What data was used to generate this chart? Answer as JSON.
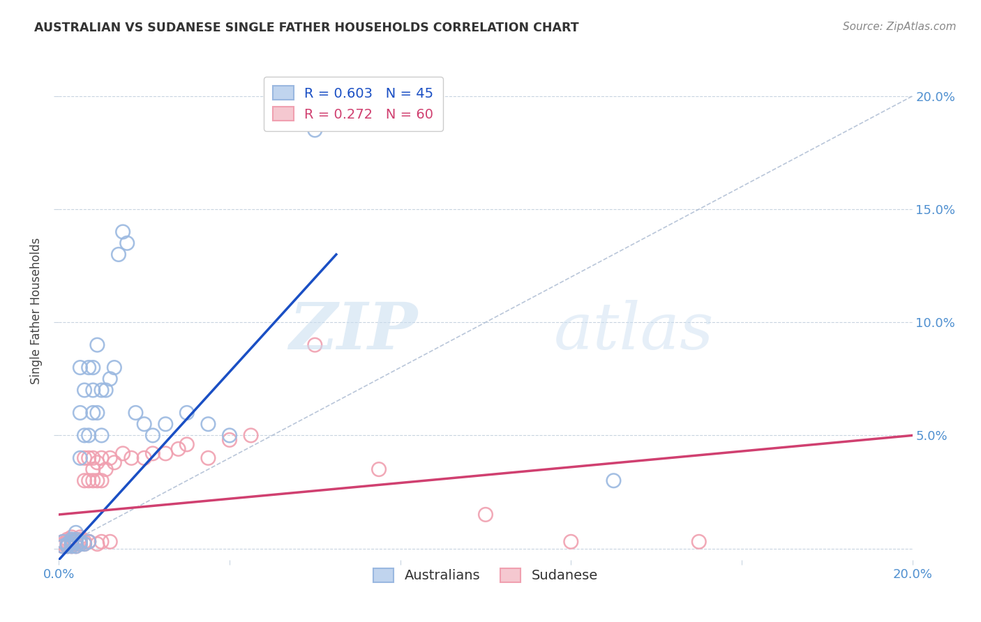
{
  "title": "AUSTRALIAN VS SUDANESE SINGLE FATHER HOUSEHOLDS CORRELATION CHART",
  "source": "Source: ZipAtlas.com",
  "ylabel": "Single Father Households",
  "xlim": [
    0.0,
    0.2
  ],
  "ylim": [
    -0.005,
    0.215
  ],
  "yticks": [
    0.0,
    0.05,
    0.1,
    0.15,
    0.2
  ],
  "ytick_labels_right": [
    "",
    "5.0%",
    "10.0%",
    "15.0%",
    "20.0%"
  ],
  "xticks": [
    0.0,
    0.04,
    0.08,
    0.12,
    0.16,
    0.2
  ],
  "legend_r_blue": "R = 0.603",
  "legend_n_blue": "N = 45",
  "legend_r_pink": "R = 0.272",
  "legend_n_pink": "N = 60",
  "blue_scatter_color": "#9ab8e0",
  "pink_scatter_color": "#f0a0b0",
  "blue_line_color": "#1a4fc4",
  "pink_line_color": "#d04070",
  "diagonal_color": "#a8b8d0",
  "grid_color": "#c8d4e0",
  "watermark_color": "#dce8f0",
  "background_color": "#ffffff",
  "title_color": "#333333",
  "source_color": "#888888",
  "tick_color": "#5090d0",
  "blue_scatter_x": [
    0.001,
    0.001,
    0.002,
    0.002,
    0.003,
    0.003,
    0.003,
    0.003,
    0.004,
    0.004,
    0.004,
    0.004,
    0.005,
    0.005,
    0.005,
    0.005,
    0.005,
    0.006,
    0.006,
    0.006,
    0.007,
    0.007,
    0.007,
    0.008,
    0.008,
    0.008,
    0.009,
    0.009,
    0.01,
    0.01,
    0.011,
    0.012,
    0.013,
    0.014,
    0.015,
    0.016,
    0.018,
    0.02,
    0.022,
    0.025,
    0.03,
    0.035,
    0.04,
    0.06,
    0.13
  ],
  "blue_scatter_y": [
    0.001,
    0.003,
    0.001,
    0.002,
    0.001,
    0.002,
    0.003,
    0.004,
    0.001,
    0.003,
    0.004,
    0.007,
    0.002,
    0.003,
    0.04,
    0.06,
    0.08,
    0.002,
    0.05,
    0.07,
    0.003,
    0.05,
    0.08,
    0.06,
    0.07,
    0.08,
    0.06,
    0.09,
    0.05,
    0.07,
    0.07,
    0.075,
    0.08,
    0.13,
    0.14,
    0.135,
    0.06,
    0.055,
    0.05,
    0.055,
    0.06,
    0.055,
    0.05,
    0.185,
    0.03
  ],
  "pink_scatter_x": [
    0.001,
    0.001,
    0.001,
    0.002,
    0.002,
    0.002,
    0.002,
    0.003,
    0.003,
    0.003,
    0.003,
    0.003,
    0.004,
    0.004,
    0.004,
    0.004,
    0.005,
    0.005,
    0.005,
    0.005,
    0.006,
    0.006,
    0.006,
    0.006,
    0.007,
    0.007,
    0.007,
    0.008,
    0.008,
    0.008,
    0.009,
    0.009,
    0.01,
    0.01,
    0.011,
    0.012,
    0.013,
    0.015,
    0.017,
    0.02,
    0.022,
    0.025,
    0.028,
    0.03,
    0.035,
    0.04,
    0.045,
    0.06,
    0.075,
    0.1,
    0.001,
    0.002,
    0.003,
    0.004,
    0.007,
    0.009,
    0.01,
    0.012,
    0.12,
    0.15
  ],
  "pink_scatter_y": [
    0.001,
    0.002,
    0.003,
    0.001,
    0.002,
    0.003,
    0.004,
    0.001,
    0.002,
    0.003,
    0.004,
    0.005,
    0.001,
    0.002,
    0.003,
    0.004,
    0.002,
    0.003,
    0.004,
    0.005,
    0.002,
    0.003,
    0.03,
    0.04,
    0.003,
    0.03,
    0.04,
    0.03,
    0.035,
    0.04,
    0.03,
    0.038,
    0.03,
    0.04,
    0.035,
    0.04,
    0.038,
    0.042,
    0.04,
    0.04,
    0.042,
    0.042,
    0.044,
    0.046,
    0.04,
    0.048,
    0.05,
    0.09,
    0.035,
    0.015,
    0.001,
    0.002,
    0.002,
    0.003,
    0.003,
    0.002,
    0.003,
    0.003,
    0.003,
    0.003
  ],
  "blue_line_x0": 0.0,
  "blue_line_x1": 0.065,
  "blue_line_y0": -0.005,
  "blue_line_y1": 0.13,
  "pink_line_x0": 0.0,
  "pink_line_x1": 0.2,
  "pink_line_y0": 0.015,
  "pink_line_y1": 0.05
}
